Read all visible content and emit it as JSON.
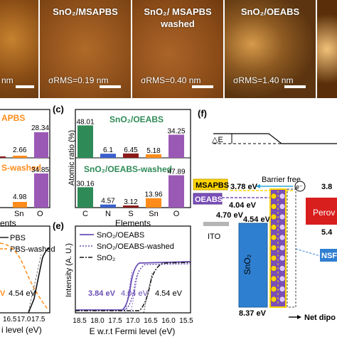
{
  "afm": {
    "p0": {
      "rms": "nm"
    },
    "p1": {
      "title": "SnO₂/MSAPBS",
      "rms": "σRMS=0.19 nm"
    },
    "p2": {
      "title": "SnO₂/ MSAPBS",
      "title2": "washed",
      "rms": "σRMS=0.40 nm"
    },
    "p3": {
      "title": "SnO₂/OEABS",
      "rms": "σRMS=1.40 nm"
    }
  },
  "panel_b": {
    "t1": "APBS",
    "v1": "28.34",
    "v2": "2.66",
    "t2": "S-washed",
    "v3": "34.85",
    "v4": "4.98",
    "xt": [
      "Sn",
      "O"
    ],
    "xl": "ents"
  },
  "panel_c": {
    "label": "(c)",
    "ylabel": "Atomic ratio (%)",
    "top_title": "SnO₂/OEABS",
    "bot_title": "SnO₂/OEABS-washed",
    "categories": [
      "C",
      "N",
      "S",
      "Sn",
      "O"
    ],
    "top_values": [
      "48.01",
      "6.1",
      "6.45",
      "5.18",
      "34.25"
    ],
    "bot_values": [
      "30.16",
      "4.57",
      "3.12",
      "13.96",
      "47.89"
    ],
    "xlabel": "Elements"
  },
  "panel_d": {
    "leg1": "PBS",
    "leg2": "PBS-washed",
    "ann1": "V",
    "ann2": "4.54 eV",
    "xticks": [
      "16.5",
      "17.0",
      "17.5",
      "15.0",
      "15.5"
    ],
    "xlabel": "i level (eV)"
  },
  "panel_e": {
    "label": "(e)",
    "ylabel": "Intensity (A. U.)",
    "legend": [
      "SnO₂/OEABS",
      "SnO₂/OEABS-washed",
      "SnO₂"
    ],
    "ann": [
      "3.84 eV",
      "4.04 eV",
      "4.54 eV"
    ],
    "xticks": [
      "18.5",
      "18.0",
      "17.5",
      "17.0",
      "16.5",
      "16.0",
      "15.5"
    ],
    "xlabel": "E w.r.t Fermi level (eV)"
  },
  "panel_f": {
    "label": "(f)",
    "delta_e": "△E",
    "msapbs": "MSAPBS",
    "msapbs_val": "3.78 eV",
    "barrier": "Barrier free",
    "oeabs": "OEABS",
    "oeabs_val": "4.04 eV",
    "ito_val": "4.70 eV",
    "ito": "ITO",
    "sno2_val": "4.54 eV",
    "sno2": "SnO₂",
    "electron": "e⁻",
    "top_right": "3.8",
    "perov": "Perov",
    "perov_val": "5.4",
    "nsf": "NSF",
    "bottom_val": "8.37 eV",
    "net_dipole": "Net dipo"
  },
  "chart_data": [
    {
      "type": "bar",
      "title": "SnO₂/OEABS",
      "categories": [
        "C",
        "N",
        "S",
        "Sn",
        "O"
      ],
      "values": [
        48.01,
        6.1,
        6.45,
        5.18,
        34.25
      ],
      "ylabel": "Atomic ratio (%)",
      "colors": [
        "#2e8b57",
        "#3a5fcd",
        "#8b1a1a",
        "#ff8c1a",
        "#9b59b6"
      ]
    },
    {
      "type": "bar",
      "title": "SnO₂/OEABS-washed",
      "categories": [
        "C",
        "N",
        "S",
        "Sn",
        "O"
      ],
      "values": [
        30.16,
        4.57,
        3.12,
        13.96,
        47.89
      ],
      "xlabel": "Elements",
      "ylabel": "Atomic ratio (%)"
    },
    {
      "type": "line",
      "xlabel": "E w.r.t Fermi level (eV)",
      "ylabel": "Intensity (A. U.)",
      "series": [
        {
          "name": "SnO₂/OEABS",
          "onset": 3.84
        },
        {
          "name": "SnO₂/OEABS-washed",
          "onset": 4.04
        },
        {
          "name": "SnO₂",
          "onset": 4.54
        }
      ]
    }
  ]
}
